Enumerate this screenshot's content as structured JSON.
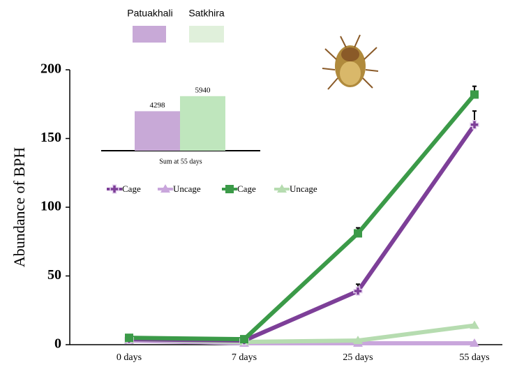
{
  "chart_data": [
    {
      "type": "line",
      "y_label": "Abundance of BPH",
      "categories": [
        "0 days",
        "7 days",
        "25 days",
        "55 days"
      ],
      "ylim": [
        0,
        200
      ],
      "yticks": [
        0,
        50,
        100,
        150,
        200
      ],
      "series": [
        {
          "name": "Cage",
          "color": "#7d3f98",
          "marker": "plus",
          "values": [
            4,
            3,
            39,
            160
          ],
          "errors": [
            0,
            0,
            5,
            10
          ]
        },
        {
          "name": "Uncage",
          "color": "#c9a6dc",
          "marker": "triangle",
          "values": [
            3,
            1,
            1,
            1
          ]
        },
        {
          "name": "Cage",
          "color": "#3b9a48",
          "marker": "square",
          "values": [
            5,
            4,
            81,
            182
          ],
          "errors": [
            0,
            0,
            4,
            6
          ]
        },
        {
          "name": "Uncage",
          "color": "#b6dcb0",
          "marker": "triangle",
          "values": [
            4,
            2,
            3,
            14
          ]
        }
      ]
    },
    {
      "type": "bar",
      "x_label": "Sum at 55 days",
      "categories": [
        "Patuakhali",
        "Satkhira"
      ],
      "values": [
        4298,
        5940
      ],
      "colors": [
        "#c8a9d7",
        "#bfe6bd"
      ],
      "ylim": [
        0,
        6000
      ]
    }
  ]
}
